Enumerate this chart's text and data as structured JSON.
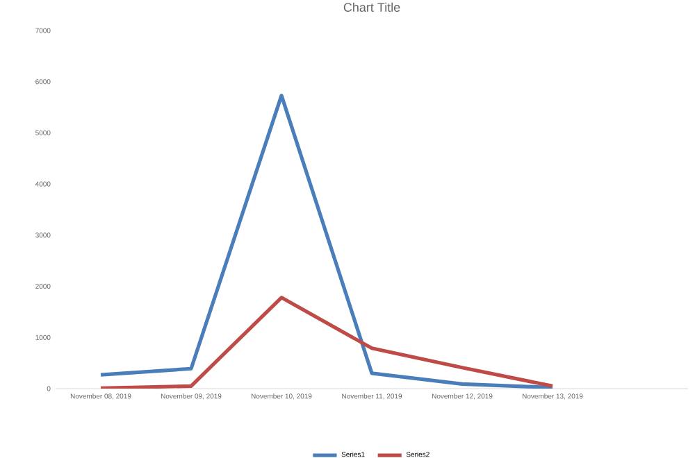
{
  "chart_data": {
    "type": "line",
    "title": "Chart Title",
    "categories": [
      "November 08, 2019",
      "November 09, 2019",
      "November 10, 2019",
      "November 11, 2019",
      "November 12, 2019",
      "November 13, 2019",
      null
    ],
    "series": [
      {
        "name": "Series1",
        "color": "#4a7ebb",
        "values": [
          270,
          390,
          5730,
          300,
          90,
          20,
          null
        ]
      },
      {
        "name": "Series2",
        "color": "#be4b48",
        "values": [
          10,
          50,
          1780,
          790,
          410,
          50,
          null
        ]
      }
    ],
    "ylim": [
      0,
      7000
    ],
    "yticks": [
      0,
      1000,
      2000,
      3000,
      4000,
      5000,
      6000,
      7000
    ],
    "legend": "bottom",
    "marker": "none",
    "line_style": "solid"
  }
}
